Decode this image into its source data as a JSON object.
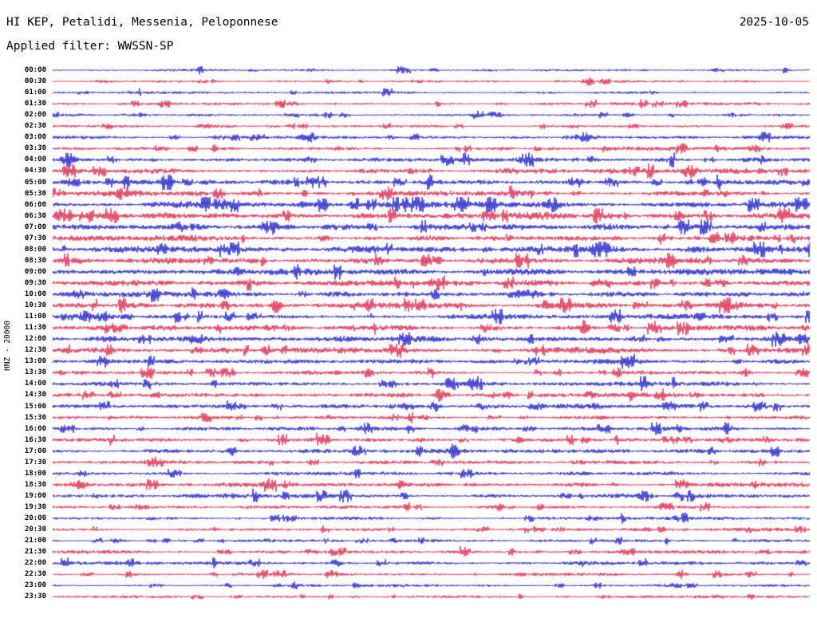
{
  "header": {
    "station_title": "HI KEP, Petalidi, Messenia, Peloponnese",
    "date": "2025-10-05",
    "filter_label": "Applied filter: WWSSN-SP"
  },
  "axis": {
    "left_label": "HNZ - 20000"
  },
  "chart_data": {
    "type": "line",
    "kind": "helicorder-seismogram",
    "title": "HI KEP, Petalidi, Messenia, Peloponnese — 2025-10-05",
    "filter": "WWSSN-SP",
    "channel": "HNZ",
    "scale": 20000,
    "minutes_per_line": 30,
    "legend_position": "none",
    "grid": false,
    "colors": {
      "blue": "#0b0bc8",
      "red": "#dc143c"
    },
    "rows": [
      {
        "time": "00:00",
        "color": "blue",
        "noise": 1.0
      },
      {
        "time": "00:30",
        "color": "red",
        "noise": 1.0
      },
      {
        "time": "01:00",
        "color": "blue",
        "noise": 1.1
      },
      {
        "time": "01:30",
        "color": "red",
        "noise": 1.2
      },
      {
        "time": "02:00",
        "color": "blue",
        "noise": 1.2
      },
      {
        "time": "02:30",
        "color": "red",
        "noise": 1.4
      },
      {
        "time": "03:00",
        "color": "blue",
        "noise": 1.5
      },
      {
        "time": "03:30",
        "color": "red",
        "noise": 1.6
      },
      {
        "time": "04:00",
        "color": "blue",
        "noise": 2.0
      },
      {
        "time": "04:30",
        "color": "red",
        "noise": 2.2
      },
      {
        "time": "05:00",
        "color": "blue",
        "noise": 2.2
      },
      {
        "time": "05:30",
        "color": "red",
        "noise": 2.4
      },
      {
        "time": "06:00",
        "color": "blue",
        "noise": 2.8
      },
      {
        "time": "06:30",
        "color": "red",
        "noise": 3.0
      },
      {
        "time": "07:00",
        "color": "blue",
        "noise": 2.8
      },
      {
        "time": "07:30",
        "color": "red",
        "noise": 2.6
      },
      {
        "time": "08:00",
        "color": "blue",
        "noise": 2.8
      },
      {
        "time": "08:30",
        "color": "red",
        "noise": 2.6
      },
      {
        "time": "09:00",
        "color": "blue",
        "noise": 2.6
      },
      {
        "time": "09:30",
        "color": "red",
        "noise": 2.4
      },
      {
        "time": "10:00",
        "color": "blue",
        "noise": 2.4
      },
      {
        "time": "10:30",
        "color": "red",
        "noise": 2.4
      },
      {
        "time": "11:00",
        "color": "blue",
        "noise": 2.2
      },
      {
        "time": "11:30",
        "color": "red",
        "noise": 2.4
      },
      {
        "time": "12:00",
        "color": "blue",
        "noise": 2.4
      },
      {
        "time": "12:30",
        "color": "red",
        "noise": 2.6
      },
      {
        "time": "13:00",
        "color": "blue",
        "noise": 2.2
      },
      {
        "time": "13:30",
        "color": "red",
        "noise": 2.0
      },
      {
        "time": "14:00",
        "color": "blue",
        "noise": 2.0
      },
      {
        "time": "14:30",
        "color": "red",
        "noise": 2.0
      },
      {
        "time": "15:00",
        "color": "blue",
        "noise": 1.9
      },
      {
        "time": "15:30",
        "color": "red",
        "noise": 1.8
      },
      {
        "time": "16:00",
        "color": "blue",
        "noise": 1.8
      },
      {
        "time": "16:30",
        "color": "red",
        "noise": 1.8
      },
      {
        "time": "17:00",
        "color": "blue",
        "noise": 1.8
      },
      {
        "time": "17:30",
        "color": "red",
        "noise": 1.7
      },
      {
        "time": "18:00",
        "color": "blue",
        "noise": 1.6
      },
      {
        "time": "18:30",
        "color": "red",
        "noise": 1.8
      },
      {
        "time": "19:00",
        "color": "blue",
        "noise": 1.8
      },
      {
        "time": "19:30",
        "color": "red",
        "noise": 1.4
      },
      {
        "time": "20:00",
        "color": "blue",
        "noise": 1.4
      },
      {
        "time": "20:30",
        "color": "red",
        "noise": 1.5
      },
      {
        "time": "21:00",
        "color": "blue",
        "noise": 1.3
      },
      {
        "time": "21:30",
        "color": "red",
        "noise": 1.5
      },
      {
        "time": "22:00",
        "color": "blue",
        "noise": 1.6
      },
      {
        "time": "22:30",
        "color": "red",
        "noise": 1.4
      },
      {
        "time": "23:00",
        "color": "blue",
        "noise": 1.3
      },
      {
        "time": "23:30",
        "color": "red",
        "noise": 1.2
      }
    ],
    "events": [
      {
        "row": "00:30",
        "x": 0.73,
        "amp": 4.5,
        "w": 4
      },
      {
        "row": "02:00",
        "x": 0.76,
        "amp": 4,
        "w": 4
      },
      {
        "row": "02:30",
        "x": 0.2,
        "amp": 3,
        "w": 6
      },
      {
        "row": "03:00",
        "x": 0.34,
        "amp": 6,
        "w": 4
      },
      {
        "row": "03:00",
        "x": 0.7,
        "amp": 4,
        "w": 10
      },
      {
        "row": "04:00",
        "x": 0.02,
        "amp": 9,
        "w": 5
      },
      {
        "row": "04:30",
        "x": 0.84,
        "amp": 9,
        "w": 6
      },
      {
        "row": "05:30",
        "x": 0.44,
        "amp": 5,
        "w": 4
      },
      {
        "row": "06:00",
        "x": 0.66,
        "amp": 7,
        "w": 4
      },
      {
        "row": "06:30",
        "x": 0.015,
        "amp": 8,
        "w": 7
      },
      {
        "row": "07:00",
        "x": 0.3,
        "amp": 4,
        "w": 8
      },
      {
        "row": "08:00",
        "x": 0.72,
        "amp": 5,
        "w": 7
      },
      {
        "row": "09:30",
        "x": 0.72,
        "amp": 6,
        "w": 5
      },
      {
        "row": "10:00",
        "x": 0.63,
        "amp": 4,
        "w": 8
      },
      {
        "row": "10:30",
        "x": 0.295,
        "amp": 9,
        "w": 4
      },
      {
        "row": "10:30",
        "x": 0.65,
        "amp": 5,
        "w": 5
      },
      {
        "row": "11:30",
        "x": 0.09,
        "amp": 4,
        "w": 5
      },
      {
        "row": "11:30",
        "x": 0.57,
        "amp": 5,
        "w": 4
      },
      {
        "row": "12:00",
        "x": 0.56,
        "amp": 6,
        "w": 4
      },
      {
        "row": "12:00",
        "x": 0.78,
        "amp": 4,
        "w": 4
      },
      {
        "row": "13:30",
        "x": 0.915,
        "amp": 5,
        "w": 4
      },
      {
        "row": "14:30",
        "x": 0.51,
        "amp": 5,
        "w": 4
      },
      {
        "row": "14:30",
        "x": 0.6,
        "amp": 4,
        "w": 4
      },
      {
        "row": "15:00",
        "x": 0.505,
        "amp": 6,
        "w": 4
      },
      {
        "row": "16:00",
        "x": 0.415,
        "amp": 7,
        "w": 5
      },
      {
        "row": "16:30",
        "x": 0.82,
        "amp": 5,
        "w": 4
      },
      {
        "row": "17:00",
        "x": 0.53,
        "amp": 8,
        "w": 4
      },
      {
        "row": "18:30",
        "x": 0.037,
        "amp": 4,
        "w": 5
      },
      {
        "row": "18:30",
        "x": 0.46,
        "amp": 4,
        "w": 4
      },
      {
        "row": "19:00",
        "x": 0.78,
        "amp": 5,
        "w": 7
      },
      {
        "row": "21:30",
        "x": 0.37,
        "amp": 4,
        "w": 4
      },
      {
        "row": "22:30",
        "x": 0.83,
        "amp": 5,
        "w": 4
      },
      {
        "row": "23:00",
        "x": 0.32,
        "amp": 4,
        "w": 4
      }
    ]
  }
}
